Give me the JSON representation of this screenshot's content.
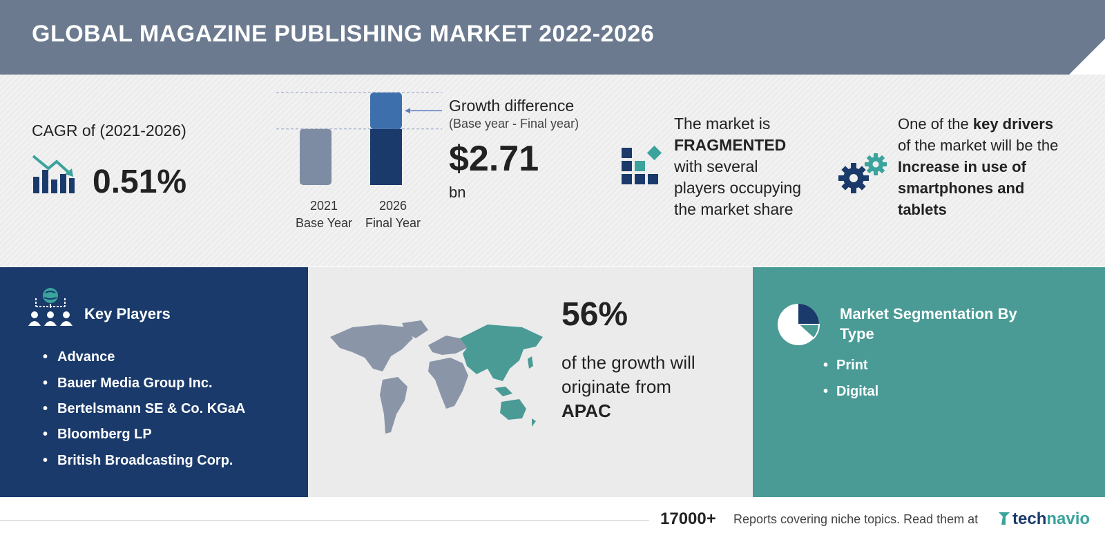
{
  "header": {
    "title": "GLOBAL MAGAZINE PUBLISHING MARKET 2022-2026"
  },
  "cagr": {
    "label": "CAGR of (2021-2026)",
    "value": "0.51%"
  },
  "growth": {
    "label": "Growth difference",
    "sublabel": "(Base year - Final year)",
    "value": "$2.71",
    "unit": "bn"
  },
  "chart_data": {
    "type": "bar",
    "categories": [
      "2021\nBase Year",
      "2026\nFinal Year"
    ],
    "category_years": [
      "2021",
      "2026"
    ],
    "category_names": [
      "Base Year",
      "Final Year"
    ],
    "values": [
      1.0,
      1.65
    ],
    "increment_highlighted": true,
    "colors": {
      "base": "#7d8ca3",
      "final_base": "#1a3a6b",
      "final_increment": "#3e6fad"
    }
  },
  "fragmented": {
    "line1": "The market is",
    "line2": "FRAGMENTED",
    "line3": "with several",
    "line4": "players occupying",
    "line5": "the market share"
  },
  "drivers": {
    "line1_pre": "One of the ",
    "line1_bold": "key drivers",
    "line2": "of the market will be the",
    "line3": "Increase in use of",
    "line4": "smartphones and",
    "line5": "tablets"
  },
  "players": {
    "title": "Key Players",
    "items": [
      "Advance",
      "Bauer Media Group Inc.",
      "Bertelsmann SE & Co. KGaA",
      "Bloomberg LP",
      "British Broadcasting Corp."
    ]
  },
  "region": {
    "percent": "56%",
    "line1": "of the growth will",
    "line2": "originate from",
    "region": "APAC"
  },
  "segmentation": {
    "title_line1": "Market Segmentation By",
    "title_line2": "Type",
    "items": [
      "Print",
      "Digital"
    ]
  },
  "footer": {
    "count": "17000+",
    "text": "Reports covering niche topics. Read them at",
    "brand_part1": "tech",
    "brand_part2": "navio"
  },
  "colors": {
    "header": "#6b7a8f",
    "navy": "#1a3a6b",
    "teal": "#4a9b96",
    "steel": "#7d8ca3"
  },
  "icons": [
    "chart-trend-icon",
    "fragmented-blocks-icon",
    "gears-icon",
    "key-players-network-icon",
    "world-map-icon",
    "pie-chart-icon",
    "technavio-logo-icon"
  ]
}
